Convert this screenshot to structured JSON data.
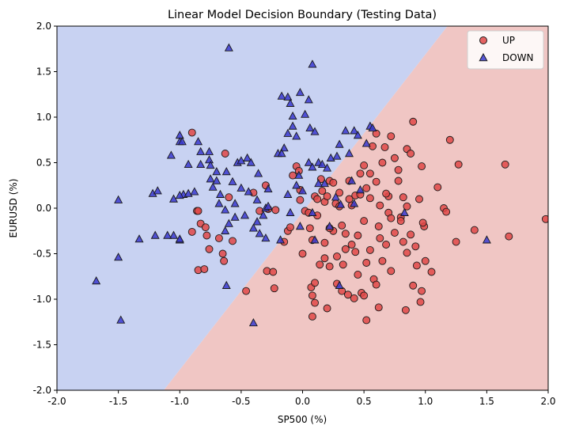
{
  "chart_data": {
    "type": "scatter",
    "title": "Linear Model Decision Boundary (Testing Data)",
    "xlabel": "SP500 (%)",
    "ylabel": "EURUSD (%)",
    "xlim": [
      -2.0,
      2.0
    ],
    "ylim": [
      -2.0,
      2.0
    ],
    "x_ticks": [
      "-2.0",
      "-1.5",
      "-1.0",
      "-0.5",
      "0.0",
      "0.5",
      "1.0",
      "1.5",
      "2.0"
    ],
    "y_ticks": [
      "-2.0",
      "-1.5",
      "-1.0",
      "-0.5",
      "0.0",
      "0.5",
      "1.0",
      "1.5",
      "2.0"
    ],
    "grid": false,
    "legend_position": "top-right",
    "decision_boundary": {
      "points": [
        [
          -1.13,
          -2.0
        ],
        [
          1.18,
          2.0
        ]
      ],
      "left_region_class": "DOWN",
      "right_region_class": "UP",
      "left_color": "#c8d2f2",
      "right_color": "#f0c6c4"
    },
    "series": [
      {
        "name": "UP",
        "marker": "circle",
        "color": "#e04848",
        "points": [
          [
            -0.9,
            0.83
          ],
          [
            -0.63,
            0.6
          ],
          [
            -0.86,
            -0.03
          ],
          [
            -0.85,
            -0.03
          ],
          [
            -0.83,
            -0.17
          ],
          [
            -0.79,
            -0.21
          ],
          [
            -0.78,
            -0.3
          ],
          [
            -0.76,
            -0.45
          ],
          [
            -0.68,
            -0.33
          ],
          [
            -0.65,
            -0.5
          ],
          [
            -0.6,
            0.12
          ],
          [
            -0.57,
            -0.36
          ],
          [
            -0.9,
            -0.26
          ],
          [
            -0.85,
            -0.68
          ],
          [
            -0.8,
            -0.67
          ],
          [
            -0.64,
            -0.58
          ],
          [
            -0.46,
            -0.91
          ],
          [
            -0.4,
            0.17
          ],
          [
            -0.35,
            -0.03
          ],
          [
            -0.3,
            0.25
          ],
          [
            -0.28,
            -0.01
          ],
          [
            -0.22,
            -0.02
          ],
          [
            -0.29,
            -0.69
          ],
          [
            -0.24,
            -0.7
          ],
          [
            -0.23,
            -0.88
          ],
          [
            -0.15,
            -0.37
          ],
          [
            -0.12,
            -0.25
          ],
          [
            -0.1,
            -0.21
          ],
          [
            -0.08,
            0.36
          ],
          [
            -0.05,
            0.46
          ],
          [
            -0.03,
            0.41
          ],
          [
            -0.02,
            0.09
          ],
          [
            0.0,
            -0.5
          ],
          [
            0.02,
            -0.03
          ],
          [
            0.05,
            -0.05
          ],
          [
            0.06,
            -0.22
          ],
          [
            0.08,
            -0.35
          ],
          [
            0.1,
            0.13
          ],
          [
            0.12,
            0.1
          ],
          [
            0.15,
            0.32
          ],
          [
            0.16,
            0.19
          ],
          [
            0.18,
            0.07
          ],
          [
            0.2,
            0.13
          ],
          [
            0.22,
            0.3
          ],
          [
            0.25,
            0.28
          ],
          [
            0.27,
            0.05
          ],
          [
            0.3,
            0.02
          ],
          [
            0.32,
            -0.19
          ],
          [
            0.35,
            -0.28
          ],
          [
            0.38,
            0.1
          ],
          [
            0.4,
            0.03
          ],
          [
            0.43,
            0.14
          ],
          [
            0.45,
            -0.3
          ],
          [
            0.47,
            0.15
          ],
          [
            0.5,
            0.47
          ],
          [
            0.52,
            0.22
          ],
          [
            0.55,
            0.38
          ],
          [
            0.57,
            0.68
          ],
          [
            0.6,
            0.82
          ],
          [
            0.63,
            0.03
          ],
          [
            0.65,
            0.5
          ],
          [
            0.67,
            0.67
          ],
          [
            0.7,
            0.13
          ],
          [
            0.72,
            0.79
          ],
          [
            0.75,
            0.55
          ],
          [
            0.78,
            0.42
          ],
          [
            0.8,
            -0.1
          ],
          [
            0.82,
            0.12
          ],
          [
            0.85,
            0.65
          ],
          [
            0.88,
            0.6
          ],
          [
            0.9,
            0.95
          ],
          [
            0.95,
            0.1
          ],
          [
            0.97,
            0.46
          ],
          [
            1.0,
            -0.58
          ],
          [
            1.05,
            -0.7
          ],
          [
            1.1,
            0.23
          ],
          [
            1.15,
            0.0
          ],
          [
            1.17,
            -0.04
          ],
          [
            1.2,
            0.75
          ],
          [
            1.25,
            -0.37
          ],
          [
            1.27,
            0.48
          ],
          [
            1.4,
            -0.24
          ],
          [
            1.65,
            0.48
          ],
          [
            1.68,
            -0.31
          ],
          [
            1.98,
            -0.12
          ],
          [
            0.07,
            -0.87
          ],
          [
            0.08,
            -0.96
          ],
          [
            0.1,
            -1.04
          ],
          [
            0.14,
            -0.62
          ],
          [
            0.18,
            -0.55
          ],
          [
            0.22,
            -0.64
          ],
          [
            0.28,
            -0.53
          ],
          [
            0.32,
            -0.91
          ],
          [
            0.37,
            -0.95
          ],
          [
            0.42,
            -0.99
          ],
          [
            0.48,
            -0.93
          ],
          [
            0.5,
            -0.96
          ],
          [
            0.52,
            -0.6
          ],
          [
            0.55,
            -0.46
          ],
          [
            0.58,
            -0.78
          ],
          [
            0.6,
            -0.84
          ],
          [
            0.65,
            -0.58
          ],
          [
            0.68,
            -0.4
          ],
          [
            0.72,
            -0.69
          ],
          [
            0.75,
            -0.27
          ],
          [
            0.8,
            -0.14
          ],
          [
            0.82,
            -0.37
          ],
          [
            0.85,
            -0.49
          ],
          [
            0.88,
            -0.29
          ],
          [
            0.9,
            -0.85
          ],
          [
            0.93,
            -0.63
          ],
          [
            0.96,
            -1.03
          ],
          [
            0.99,
            -0.2
          ],
          [
            0.2,
            -1.1
          ],
          [
            0.28,
            -0.83
          ],
          [
            0.45,
            -0.73
          ],
          [
            0.52,
            -1.23
          ],
          [
            0.62,
            -1.09
          ],
          [
            0.84,
            -1.12
          ],
          [
            0.97,
            -0.91
          ],
          [
            0.08,
            -1.19
          ],
          [
            0.1,
            -0.82
          ],
          [
            0.18,
            -0.38
          ],
          [
            0.25,
            -0.25
          ],
          [
            0.33,
            -0.62
          ],
          [
            0.4,
            -0.4
          ],
          [
            0.43,
            -0.48
          ],
          [
            0.62,
            -0.2
          ],
          [
            0.7,
            -0.05
          ],
          [
            0.92,
            -0.42
          ],
          [
            0.98,
            -0.16
          ],
          [
            0.55,
            0.11
          ],
          [
            0.6,
            0.29
          ],
          [
            0.68,
            0.16
          ],
          [
            0.78,
            0.3
          ],
          [
            0.85,
            0.02
          ],
          [
            0.47,
            0.38
          ],
          [
            0.5,
            -0.14
          ],
          [
            0.38,
            0.3
          ],
          [
            0.3,
            0.17
          ],
          [
            0.12,
            -0.08
          ],
          [
            -0.02,
            0.2
          ],
          [
            0.22,
            -0.22
          ],
          [
            0.35,
            -0.45
          ],
          [
            0.63,
            -0.33
          ],
          [
            0.72,
            -0.11
          ]
        ]
      },
      {
        "name": "DOWN",
        "marker": "triangle",
        "color": "#3a3ad0",
        "points": [
          [
            -0.6,
            1.76
          ],
          [
            0.08,
            1.58
          ],
          [
            -0.02,
            1.27
          ],
          [
            0.05,
            1.19
          ],
          [
            -0.17,
            1.23
          ],
          [
            -0.12,
            1.22
          ],
          [
            -0.1,
            1.15
          ],
          [
            0.02,
            1.03
          ],
          [
            -0.08,
            1.01
          ],
          [
            0.06,
            0.88
          ],
          [
            -0.08,
            0.9
          ],
          [
            -0.12,
            0.82
          ],
          [
            -0.05,
            0.79
          ],
          [
            -0.15,
            0.66
          ],
          [
            -0.2,
            0.6
          ],
          [
            -0.17,
            0.6
          ],
          [
            0.1,
            0.84
          ],
          [
            -1.0,
            0.8
          ],
          [
            -1.0,
            0.73
          ],
          [
            -0.98,
            0.73
          ],
          [
            -0.85,
            0.73
          ],
          [
            -0.83,
            0.62
          ],
          [
            -0.76,
            0.62
          ],
          [
            -1.07,
            0.58
          ],
          [
            -0.93,
            0.48
          ],
          [
            -0.83,
            0.48
          ],
          [
            -0.76,
            0.53
          ],
          [
            -0.75,
            0.47
          ],
          [
            -0.7,
            0.4
          ],
          [
            -0.62,
            0.4
          ],
          [
            -0.53,
            0.5
          ],
          [
            -0.5,
            0.52
          ],
          [
            -0.45,
            0.55
          ],
          [
            -0.42,
            0.5
          ],
          [
            -0.36,
            0.38
          ],
          [
            -0.28,
            0.21
          ],
          [
            -0.75,
            0.32
          ],
          [
            -0.73,
            0.23
          ],
          [
            -0.7,
            0.3
          ],
          [
            -0.67,
            0.15
          ],
          [
            -0.57,
            0.29
          ],
          [
            -0.5,
            0.22
          ],
          [
            -0.44,
            0.18
          ],
          [
            -0.37,
            0.09
          ],
          [
            -0.3,
            0.0
          ],
          [
            -0.97,
            0.15
          ],
          [
            -1.0,
            0.14
          ],
          [
            -1.05,
            0.1
          ],
          [
            -0.93,
            0.16
          ],
          [
            -0.88,
            0.18
          ],
          [
            -1.22,
            0.16
          ],
          [
            -1.18,
            0.19
          ],
          [
            -1.5,
            0.09
          ],
          [
            -0.68,
            0.05
          ],
          [
            -0.63,
            -0.02
          ],
          [
            -0.55,
            0.05
          ],
          [
            -0.47,
            -0.08
          ],
          [
            -0.37,
            -0.15
          ],
          [
            -0.32,
            -0.08
          ],
          [
            -0.28,
            0.02
          ],
          [
            -1.0,
            -0.35
          ],
          [
            -1.05,
            -0.3
          ],
          [
            -1.1,
            -0.3
          ],
          [
            -1.0,
            -0.34
          ],
          [
            -1.2,
            -0.3
          ],
          [
            -1.33,
            -0.34
          ],
          [
            -1.5,
            -0.54
          ],
          [
            -1.68,
            -0.8
          ],
          [
            -1.48,
            -1.23
          ],
          [
            -0.6,
            -0.17
          ],
          [
            -0.63,
            -0.25
          ],
          [
            -0.4,
            -0.22
          ],
          [
            -0.35,
            -0.28
          ],
          [
            -0.3,
            -0.33
          ],
          [
            -0.62,
            -0.85
          ],
          [
            -0.4,
            -1.26
          ],
          [
            -0.03,
            0.36
          ],
          [
            0.05,
            0.5
          ],
          [
            0.08,
            0.45
          ],
          [
            0.13,
            0.5
          ],
          [
            0.16,
            0.48
          ],
          [
            0.2,
            0.44
          ],
          [
            0.23,
            0.55
          ],
          [
            0.28,
            0.57
          ],
          [
            0.3,
            0.7
          ],
          [
            0.35,
            0.85
          ],
          [
            0.38,
            0.6
          ],
          [
            0.42,
            0.85
          ],
          [
            0.45,
            0.8
          ],
          [
            0.52,
            0.71
          ],
          [
            0.55,
            0.9
          ],
          [
            0.57,
            0.88
          ],
          [
            0.42,
            0.05
          ],
          [
            0.31,
            0.04
          ],
          [
            0.27,
            0.12
          ],
          [
            0.13,
            0.27
          ],
          [
            0.0,
            0.19
          ],
          [
            -0.05,
            0.25
          ],
          [
            -0.12,
            0.15
          ],
          [
            0.22,
            -0.2
          ],
          [
            0.18,
            0.27
          ],
          [
            0.08,
            -0.05
          ],
          [
            -0.02,
            -0.2
          ],
          [
            -0.1,
            -0.05
          ],
          [
            -0.18,
            -0.35
          ],
          [
            0.3,
            -0.85
          ],
          [
            0.83,
            -0.05
          ],
          [
            1.5,
            -0.35
          ],
          [
            0.1,
            -0.35
          ],
          [
            0.4,
            0.3
          ],
          [
            0.47,
            0.2
          ],
          [
            -0.55,
            -0.1
          ]
        ]
      }
    ]
  }
}
